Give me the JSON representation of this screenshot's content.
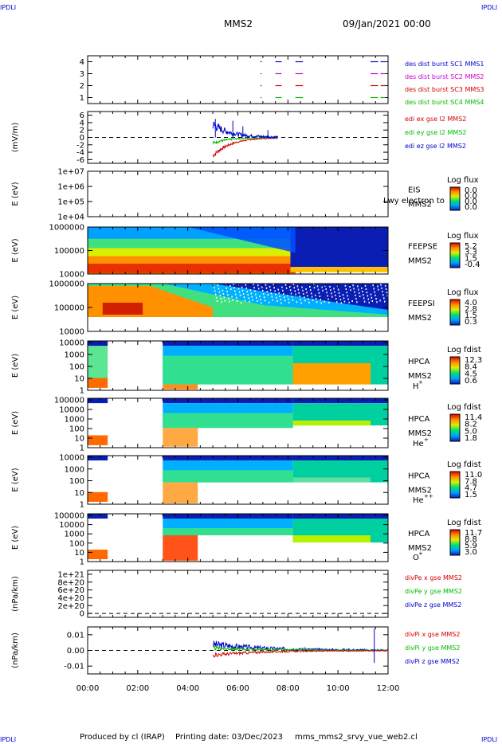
{
  "corner_label": "IPDLI",
  "header": {
    "spacecraft": "MMS2",
    "date_time": "09/Jan/2021 00:00"
  },
  "footer": {
    "produced_by": "Produced by cl (IRAP)",
    "printing_date": "Printing date: 03/Dec/2023",
    "script": "mms_mms2_srvy_vue_web2.cl"
  },
  "colors": {
    "red": "#d40000",
    "green": "#00bb00",
    "blue": "#0000cc",
    "magenta": "#cc00cc",
    "spectrogram_bg": "#0a1eb4"
  },
  "chart_data": [
    {
      "type": "line",
      "panel": "burst-flags",
      "ylabel": "",
      "yticks": [
        "1",
        "2",
        "3",
        "4"
      ],
      "ylim": [
        0.5,
        4.5
      ],
      "series": [
        {
          "name": "des dist burst SC1 MMS1",
          "color": "#0000cc",
          "y": 4,
          "segments": [
            [
              6.9,
              6.95
            ],
            [
              7.5,
              7.75
            ],
            [
              8.3,
              8.6
            ],
            [
              11.3,
              11.6
            ],
            [
              11.7,
              11.9
            ]
          ]
        },
        {
          "name": "des dist burst SC2 MMS2",
          "color": "#cc00cc",
          "y": 3,
          "segments": [
            [
              6.9,
              6.95
            ],
            [
              7.5,
              7.75
            ],
            [
              8.3,
              8.6
            ],
            [
              11.3,
              11.6
            ],
            [
              11.7,
              11.9
            ]
          ]
        },
        {
          "name": "des dist burst SC3 MMS3",
          "color": "#d40000",
          "y": 2,
          "segments": [
            [
              6.9,
              6.95
            ],
            [
              7.5,
              7.75
            ],
            [
              8.3,
              8.6
            ],
            [
              11.3,
              11.6
            ],
            [
              11.7,
              11.9
            ]
          ]
        },
        {
          "name": "des dist burst SC4 MMS4",
          "color": "#00bb00",
          "y": 1,
          "segments": [
            [
              6.9,
              6.95
            ],
            [
              7.5,
              7.75
            ],
            [
              8.3,
              8.6
            ],
            [
              11.3,
              11.6
            ],
            [
              11.7,
              11.9
            ]
          ]
        }
      ]
    },
    {
      "type": "line",
      "panel": "edi-e",
      "ylabel": "(mV/m)",
      "yticks": [
        "-6",
        "-4",
        "-2",
        "0",
        "2",
        "4",
        "6"
      ],
      "ylim": [
        -7,
        7
      ],
      "time_range": [
        5.0,
        7.6
      ],
      "series": [
        {
          "name": "edi ex gse l2 MMS2",
          "color": "#d40000"
        },
        {
          "name": "edi ey gse l2 MMS2",
          "color": "#00bb00"
        },
        {
          "name": "edi ez gse l2 MMS2",
          "color": "#0000cc"
        }
      ]
    },
    {
      "type": "heatmap",
      "panel": "eis",
      "ylabel": "E (eV)",
      "yticks": [
        "1e+04",
        "1e+05",
        "1e+06",
        "1e+07"
      ],
      "instrument": "EIS",
      "colorbar_title": "Log flux",
      "colorbar_ticks": [
        "0.0",
        "0.0",
        "0.0",
        "0.0"
      ],
      "overlay_text": "Lwy electron to",
      "note": "MMS2"
    },
    {
      "type": "heatmap",
      "panel": "feeps-e",
      "ylabel": "E (eV)",
      "yticks": [
        "10000",
        "100000",
        "1000000"
      ],
      "instrument": "FEEPSE",
      "colorbar_title": "Log flux",
      "colorbar_ticks": [
        "5.2",
        "3.3",
        "1.5",
        "-0.4"
      ],
      "note": "MMS2"
    },
    {
      "type": "heatmap",
      "panel": "feeps-i",
      "ylabel": "E (eV)",
      "yticks": [
        "10000",
        "100000",
        "1000000"
      ],
      "instrument": "FEEPSI",
      "colorbar_title": "Log flux",
      "colorbar_ticks": [
        "4.0",
        "2.8",
        "1.5",
        "0.3"
      ],
      "note": "MMS2"
    },
    {
      "type": "heatmap",
      "panel": "hpca-h",
      "ylabel": "E (eV)",
      "yticks": [
        "1",
        "10",
        "100",
        "1000",
        "10000"
      ],
      "instrument": "HPCA",
      "note": "MMS2",
      "species": "H",
      "charge": "+",
      "colorbar_title": "Log fdist",
      "colorbar_ticks": [
        "12.3",
        "8.4",
        "4.5",
        "0.6"
      ]
    },
    {
      "type": "heatmap",
      "panel": "hpca-he",
      "ylabel": "E (eV)",
      "yticks": [
        "1",
        "10",
        "100",
        "1000",
        "10000",
        "100000"
      ],
      "instrument": "HPCA",
      "note": "MMS2",
      "species": "He",
      "charge": "+",
      "colorbar_title": "Log fdist",
      "colorbar_ticks": [
        "11.4",
        "8.2",
        "5.0",
        "1.8"
      ]
    },
    {
      "type": "heatmap",
      "panel": "hpca-he2",
      "ylabel": "E (eV)",
      "yticks": [
        "1",
        "10",
        "100",
        "1000",
        "10000"
      ],
      "instrument": "HPCA",
      "note": "MMS2",
      "species": "He",
      "charge": "++",
      "colorbar_title": "Log fdist",
      "colorbar_ticks": [
        "11.0",
        "7.8",
        "4.7",
        "1.5"
      ]
    },
    {
      "type": "heatmap",
      "panel": "hpca-o",
      "ylabel": "E (eV)",
      "yticks": [
        "1",
        "10",
        "100",
        "1000",
        "10000",
        "100000"
      ],
      "instrument": "HPCA",
      "note": "MMS2",
      "species": "O",
      "charge": "+",
      "colorbar_title": "Log fdist",
      "colorbar_ticks": [
        "11.7",
        "8.8",
        "5.9",
        "3.0"
      ]
    },
    {
      "type": "line",
      "panel": "divpe",
      "ylabel": "(nPa/km)",
      "yticks": [
        "0",
        "2e+20",
        "4e+20",
        "6e+20",
        "8e+20",
        "1e+21"
      ],
      "ylim": [
        -1e+20,
        1.1e+21
      ],
      "series": [
        {
          "name": "divPe x gse MMS2",
          "color": "#d40000"
        },
        {
          "name": "divPe y gse MMS2",
          "color": "#00bb00"
        },
        {
          "name": "divPe z gse MMS2",
          "color": "#0000cc"
        }
      ]
    },
    {
      "type": "line",
      "panel": "divpi",
      "ylabel": "(nPa/km)",
      "yticks": [
        "-0.01",
        "0.00",
        "0.01"
      ],
      "ylim": [
        -0.015,
        0.015
      ],
      "series": [
        {
          "name": "divPi x gse MMS2",
          "color": "#d40000"
        },
        {
          "name": "divPi y gse MMS2",
          "color": "#00bb00"
        },
        {
          "name": "divPi z gse MMS2",
          "color": "#0000cc"
        }
      ]
    }
  ],
  "time_axis": {
    "ticks": [
      "00:00",
      "02:00",
      "04:00",
      "06:00",
      "08:00",
      "10:00",
      "12:00"
    ],
    "range_hours": [
      0,
      12
    ]
  }
}
